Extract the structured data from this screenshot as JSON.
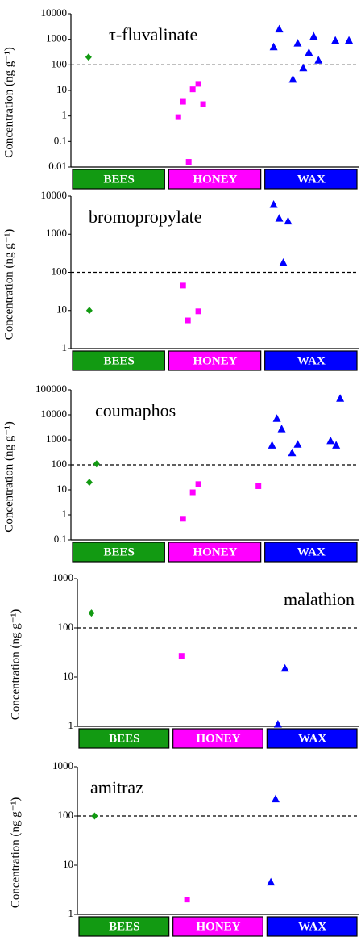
{
  "chart_data": [
    {
      "type": "scatter",
      "title": "τ-fluvalinate",
      "ylabel": "Concentration (ng g⁻¹)",
      "log_y": true,
      "ylim": [
        0.01,
        10000
      ],
      "yticks": [
        0.01,
        0.1,
        1,
        10,
        100,
        1000,
        10000
      ],
      "xlim": [
        0,
        36
      ],
      "threshold": 100,
      "series": [
        {
          "name": "BEES",
          "color": "#129a12",
          "marker": "diamond",
          "x": [
            2.2
          ],
          "values": [
            200
          ]
        },
        {
          "name": "HONEY",
          "color": "#ff00ff",
          "marker": "square",
          "x": [
            13.4,
            14.0,
            15.2,
            15.9,
            16.5,
            14.7
          ],
          "values": [
            0.9,
            3.6,
            11,
            18,
            2.9,
            0.016
          ]
        },
        {
          "name": "WAX",
          "color": "#0000ff",
          "marker": "triangle",
          "x": [
            25.3,
            26.0,
            27.7,
            28.3,
            29.0,
            29.7,
            30.3,
            30.9,
            33.0,
            34.7
          ],
          "values": [
            500,
            2500,
            27,
            700,
            75,
            300,
            1300,
            150,
            900,
            900
          ]
        }
      ]
    },
    {
      "type": "scatter",
      "title": "bromopropylate",
      "ylabel": "Concentration (ng g⁻¹)",
      "log_y": true,
      "ylim": [
        1,
        10000
      ],
      "yticks": [
        1,
        10,
        100,
        1000,
        10000
      ],
      "xlim": [
        0,
        36
      ],
      "threshold": 100,
      "series": [
        {
          "name": "BEES",
          "color": "#129a12",
          "marker": "diamond",
          "x": [
            2.3
          ],
          "values": [
            10
          ]
        },
        {
          "name": "HONEY",
          "color": "#ff00ff",
          "marker": "square",
          "x": [
            14.0,
            14.6,
            15.9
          ],
          "values": [
            45,
            5.5,
            9.5
          ]
        },
        {
          "name": "WAX",
          "color": "#0000ff",
          "marker": "triangle",
          "x": [
            25.3,
            26.0,
            27.1,
            26.5
          ],
          "values": [
            6000,
            2600,
            2200,
            180
          ]
        }
      ]
    },
    {
      "type": "scatter",
      "title": "coumaphos",
      "ylabel": "Concentration (ng g⁻¹)",
      "log_y": true,
      "ylim": [
        0.1,
        100000
      ],
      "yticks": [
        0.1,
        1,
        10,
        100,
        1000,
        10000,
        100000
      ],
      "xlim": [
        0,
        36
      ],
      "threshold": 100,
      "series": [
        {
          "name": "BEES",
          "color": "#129a12",
          "marker": "diamond",
          "x": [
            2.3,
            3.2
          ],
          "values": [
            20,
            110
          ]
        },
        {
          "name": "HONEY",
          "color": "#ff00ff",
          "marker": "square",
          "x": [
            14.0,
            15.2,
            15.9,
            23.4
          ],
          "values": [
            0.7,
            8,
            17,
            14
          ]
        },
        {
          "name": "WAX",
          "color": "#0000ff",
          "marker": "triangle",
          "x": [
            25.1,
            25.7,
            26.3,
            27.6,
            28.3,
            32.4,
            33.1,
            33.6
          ],
          "values": [
            600,
            7000,
            2700,
            300,
            650,
            900,
            600,
            45000
          ]
        }
      ]
    },
    {
      "type": "scatter",
      "title": "malathion",
      "ylabel": "Concentration (ng g⁻¹)",
      "log_y": true,
      "ylim": [
        1,
        1000
      ],
      "yticks": [
        1,
        10,
        100,
        1000
      ],
      "xlim": [
        0,
        36
      ],
      "threshold": 100,
      "series": [
        {
          "name": "BEES",
          "color": "#129a12",
          "marker": "diamond",
          "x": [
            1.8
          ],
          "values": [
            200
          ]
        },
        {
          "name": "HONEY",
          "color": "#ff00ff",
          "marker": "square",
          "x": [
            13.3
          ],
          "values": [
            27
          ]
        },
        {
          "name": "WAX",
          "color": "#0000ff",
          "marker": "triangle",
          "x": [
            26.5,
            25.6
          ],
          "values": [
            15,
            1.1
          ]
        }
      ]
    },
    {
      "type": "scatter",
      "title": "amitraz",
      "ylabel": "Concentration (ng g⁻¹)",
      "log_y": true,
      "ylim": [
        1,
        1000
      ],
      "yticks": [
        1,
        10,
        100,
        1000
      ],
      "xlim": [
        0,
        36
      ],
      "threshold": 100,
      "series": [
        {
          "name": "BEES",
          "color": "#129a12",
          "marker": "diamond",
          "x": [
            2.2
          ],
          "values": [
            100
          ]
        },
        {
          "name": "HONEY",
          "color": "#ff00ff",
          "marker": "square",
          "x": [
            14.0
          ],
          "values": [
            2
          ]
        },
        {
          "name": "WAX",
          "color": "#0000ff",
          "marker": "triangle",
          "x": [
            25.3,
            24.7
          ],
          "values": [
            220,
            4.5
          ]
        }
      ]
    }
  ]
}
